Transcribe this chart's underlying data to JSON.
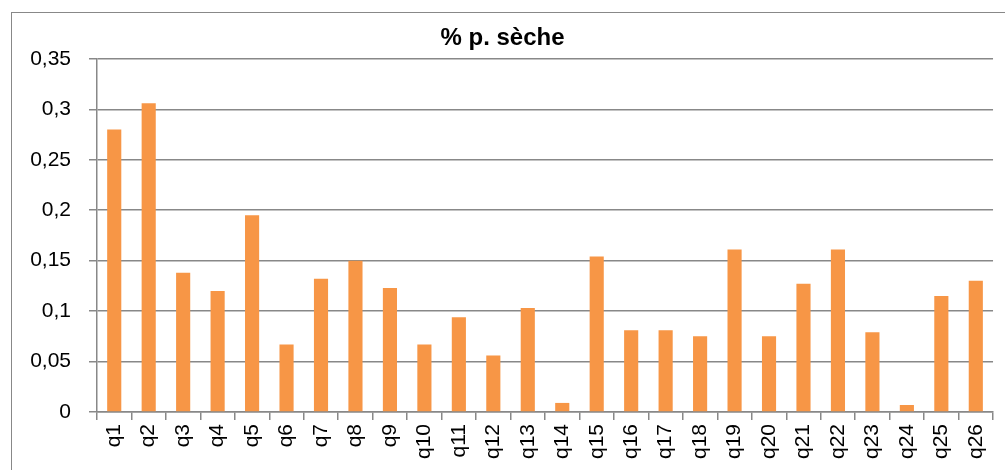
{
  "chart_data": {
    "type": "bar",
    "title": "% p. sèche",
    "categories": [
      "q1",
      "q2",
      "q3",
      "q4",
      "q5",
      "q6",
      "q7",
      "q8",
      "q9",
      "q10",
      "q11",
      "q12",
      "q13",
      "q14",
      "q15",
      "q16",
      "q17",
      "q18",
      "q19",
      "q20",
      "q21",
      "q22",
      "q23",
      "q24",
      "q25",
      "q26"
    ],
    "values": [
      0.28,
      0.306,
      0.138,
      0.12,
      0.195,
      0.067,
      0.132,
      0.15,
      0.123,
      0.067,
      0.094,
      0.056,
      0.103,
      0.009,
      0.154,
      0.081,
      0.081,
      0.075,
      0.161,
      0.075,
      0.127,
      0.161,
      0.079,
      0.007,
      0.115,
      0.13
    ],
    "color": "#f79646",
    "ylim": [
      0,
      0.35
    ],
    "yticks": [
      0,
      {
        "value": 0.05,
        "label": "0,05"
      },
      {
        "value": 0.1,
        "label": "0,1"
      },
      {
        "value": 0.15,
        "label": "0,15"
      },
      {
        "value": 0.2,
        "label": "0,2"
      },
      {
        "value": 0.25,
        "label": "0,25"
      },
      {
        "value": 0.3,
        "label": "0,3"
      },
      {
        "value": 0.35,
        "label": "0,35"
      }
    ],
    "grid": "y"
  }
}
